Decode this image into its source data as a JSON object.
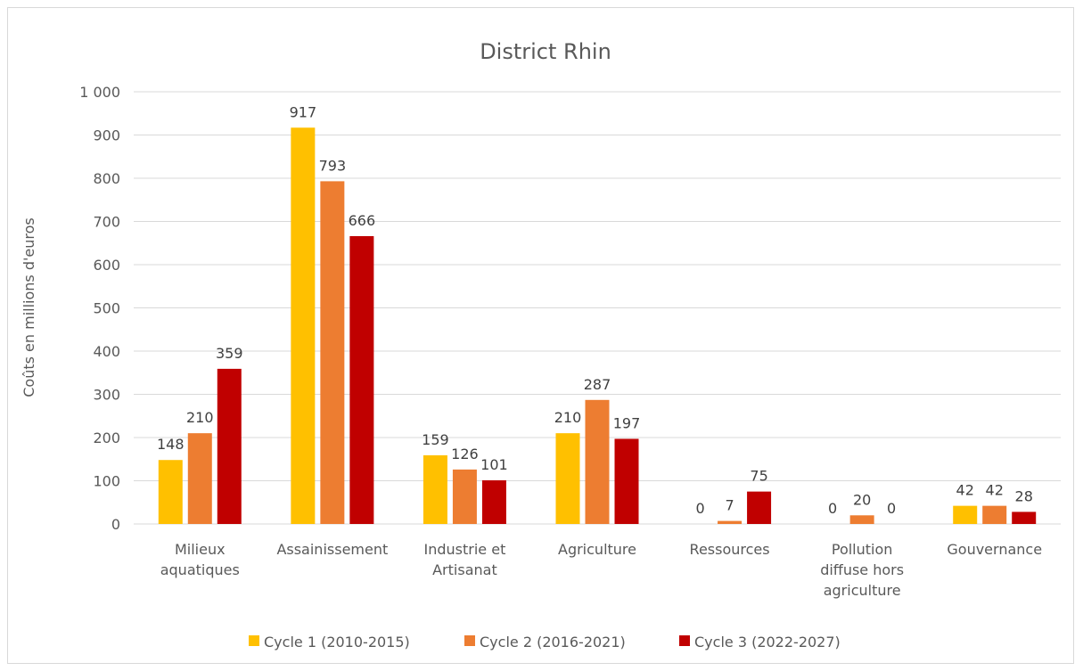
{
  "chart_data": {
    "type": "bar",
    "title": "District Rhin",
    "xlabel": "",
    "ylabel": "Coûts en millions d'euros",
    "ylim": [
      0,
      1000
    ],
    "yticks": [
      0,
      100,
      200,
      300,
      400,
      500,
      600,
      700,
      800,
      900,
      1000
    ],
    "ytick_labels": [
      "0",
      "100",
      "200",
      "300",
      "400",
      "500",
      "600",
      "700",
      "800",
      "900",
      "1 000"
    ],
    "categories": [
      [
        "Milieux",
        "aquatiques"
      ],
      [
        "Assainissement"
      ],
      [
        "Industrie et",
        "Artisanat"
      ],
      [
        "Agriculture"
      ],
      [
        "Ressources"
      ],
      [
        "Pollution",
        "diffuse hors",
        "agriculture"
      ],
      [
        "Gouvernance"
      ]
    ],
    "series": [
      {
        "name": "Cycle 1 (2010-2015)",
        "color": "#ffc000",
        "values": [
          148,
          917,
          159,
          210,
          0,
          0,
          42
        ]
      },
      {
        "name": "Cycle 2 (2016-2021)",
        "color": "#ed7d31",
        "values": [
          210,
          793,
          126,
          287,
          7,
          20,
          42
        ]
      },
      {
        "name": "Cycle 3 (2022-2027)",
        "color": "#c00000",
        "values": [
          359,
          666,
          101,
          197,
          75,
          0,
          28
        ]
      }
    ],
    "data_labels": true,
    "grid": true,
    "legend_position": "bottom"
  }
}
